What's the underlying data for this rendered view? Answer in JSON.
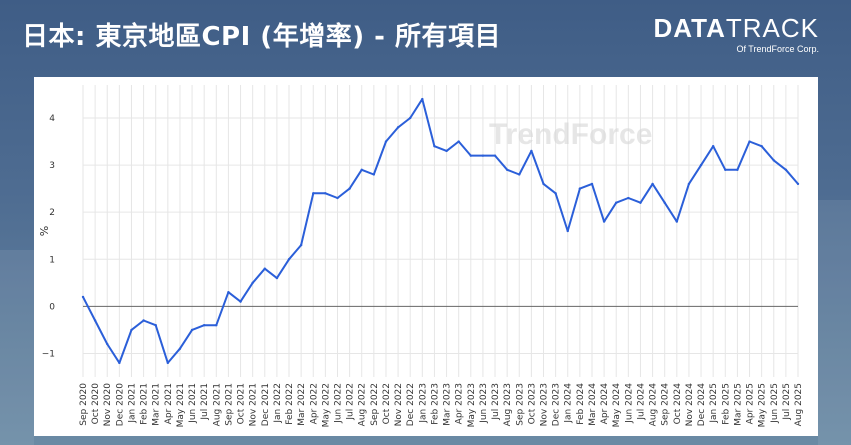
{
  "header": {
    "title": "日本: 東京地區CPI (年增率) - 所有項目",
    "brand_data": "DATA",
    "brand_track": "TRACK",
    "brand_sub": "Of TrendForce Corp."
  },
  "watermark": "TrendForce",
  "colors": {
    "line": "#2b5fd9",
    "grid": "#e6e6e6",
    "zero": "#666666"
  },
  "chart_data": {
    "type": "line",
    "title": "日本: 東京地區CPI (年增率) - 所有項目",
    "xlabel": "",
    "ylabel": "%",
    "ylim": [
      -1.5,
      4.7
    ],
    "yticks": [
      -1,
      0,
      1,
      2,
      3,
      4
    ],
    "grid": true,
    "x": [
      "Sep 2020",
      "Oct 2020",
      "Nov 2020",
      "Dec 2020",
      "Jan 2021",
      "Feb 2021",
      "Mar 2021",
      "Apr 2021",
      "May 2021",
      "Jun 2021",
      "Jul 2021",
      "Aug 2021",
      "Sep 2021",
      "Oct 2021",
      "Nov 2021",
      "Dec 2021",
      "Jan 2022",
      "Feb 2022",
      "Mar 2022",
      "Apr 2022",
      "May 2022",
      "Jun 2022",
      "Jul 2022",
      "Aug 2022",
      "Sep 2022",
      "Oct 2022",
      "Nov 2022",
      "Dec 2022",
      "Jan 2023",
      "Feb 2023",
      "Mar 2023",
      "Apr 2023",
      "May 2023",
      "Jun 2023",
      "Jul 2023",
      "Aug 2023",
      "Sep 2023",
      "Oct 2023",
      "Nov 2023",
      "Dec 2023",
      "Jan 2024",
      "Feb 2024",
      "Mar 2024",
      "Apr 2024",
      "May 2024",
      "Jun 2024",
      "Jul 2024",
      "Aug 2024",
      "Sep 2024",
      "Oct 2024",
      "Nov 2024",
      "Dec 2024",
      "Jan 2025",
      "Feb 2025",
      "Mar 2025",
      "Apr 2025",
      "May 2025",
      "Jun 2025",
      "Jul 2025",
      "Aug 2025"
    ],
    "series": [
      {
        "values": [
          0.2,
          -0.3,
          -0.8,
          -1.2,
          -0.5,
          -0.3,
          -0.4,
          -1.2,
          -0.9,
          -0.5,
          -0.4,
          -0.4,
          0.3,
          0.1,
          0.5,
          0.8,
          0.6,
          1.0,
          1.3,
          2.4,
          2.4,
          2.3,
          2.5,
          2.9,
          2.8,
          3.5,
          3.8,
          4.0,
          4.4,
          3.4,
          3.3,
          3.5,
          3.2,
          3.2,
          3.2,
          2.9,
          2.8,
          3.3,
          2.6,
          2.4,
          1.6,
          2.5,
          2.6,
          1.8,
          2.2,
          2.3,
          2.2,
          2.6,
          2.2,
          1.8,
          2.6,
          3.0,
          3.4,
          2.9,
          2.9,
          3.5,
          3.4,
          3.1,
          2.9,
          2.6
        ]
      }
    ]
  }
}
